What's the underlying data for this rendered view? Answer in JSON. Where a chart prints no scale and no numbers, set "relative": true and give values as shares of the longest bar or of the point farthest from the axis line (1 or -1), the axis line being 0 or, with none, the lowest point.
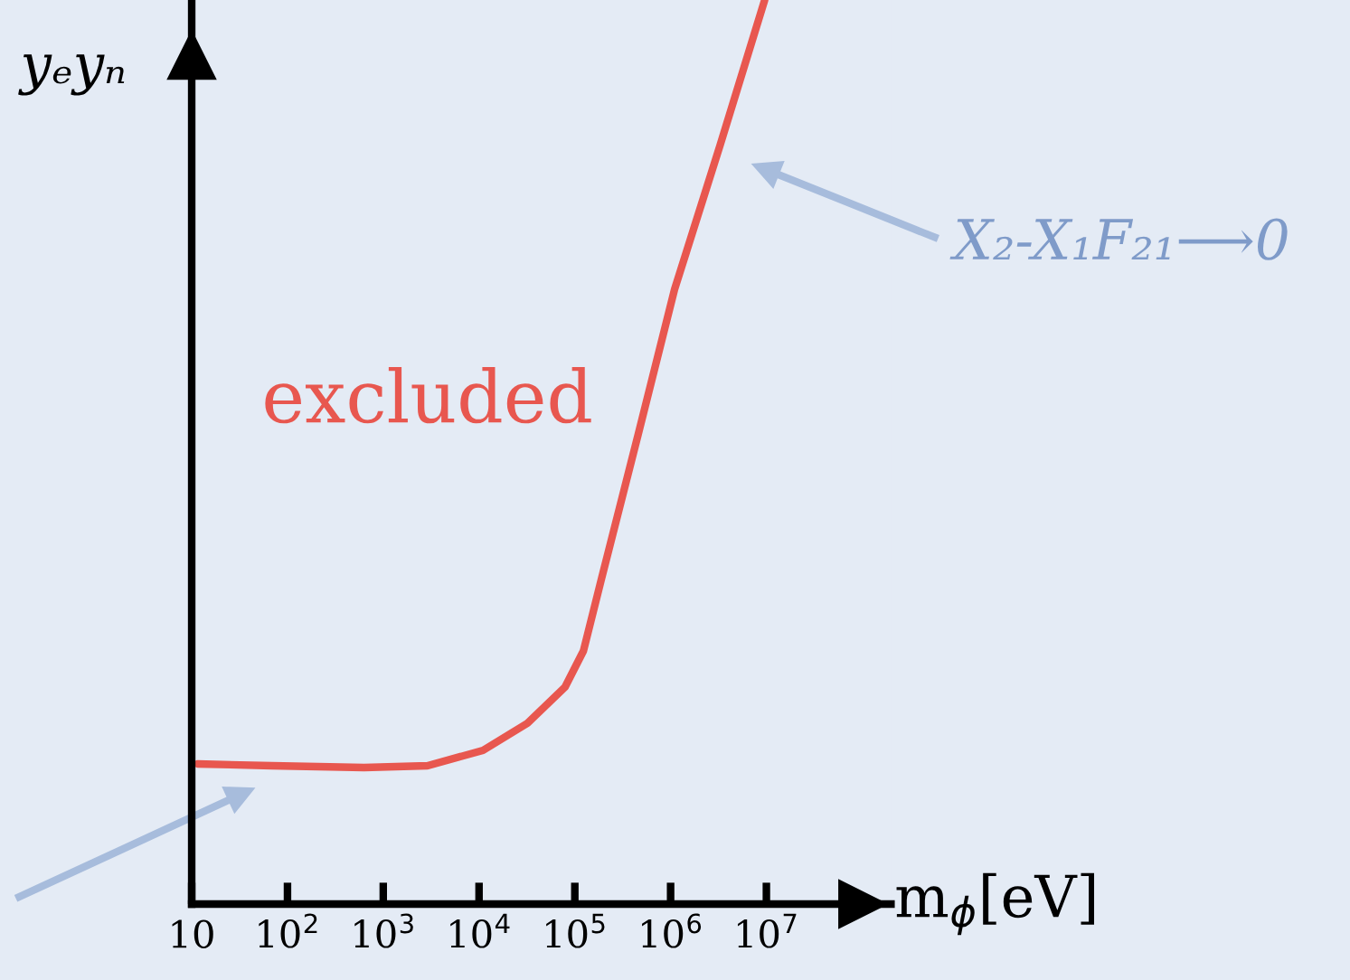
{
  "chart_data": {
    "type": "line",
    "relative": true,
    "log": "x",
    "xlabel": "m$_{ϕ}$[eV]",
    "ylabel": "yₑyₙ",
    "tick_labels": "x",
    "grid": false,
    "xlim": [
      10,
      200000000
    ],
    "xticks": [
      10,
      {
        "value": 100,
        "label": "10$^{2}$"
      },
      {
        "value": 1000,
        "label": "10$^{3}$"
      },
      {
        "value": 10000,
        "label": "10$^{4}$"
      },
      {
        "value": 100000,
        "label": "10$^{5}$"
      },
      {
        "value": 1000000,
        "label": "10$^{6}$"
      },
      {
        "value": 10000000,
        "label": "10$^{7}$"
      }
    ],
    "series": [
      {
        "color": "#e8574f",
        "x": [
          11.5,
          69,
          630,
          2900,
          11000,
          32000,
          79000,
          123000,
          190000,
          460000,
          1100000,
          3300000,
          9600000
        ],
        "values": [
          0.155,
          0.153,
          0.151,
          0.153,
          0.17,
          0.2,
          0.24,
          0.28,
          0.36,
          0.52,
          0.68,
          0.84,
          1.0
        ]
      }
    ],
    "annotations": [
      "X₂-X₁F₂₁⟶0",
      "excluded"
    ]
  }
}
